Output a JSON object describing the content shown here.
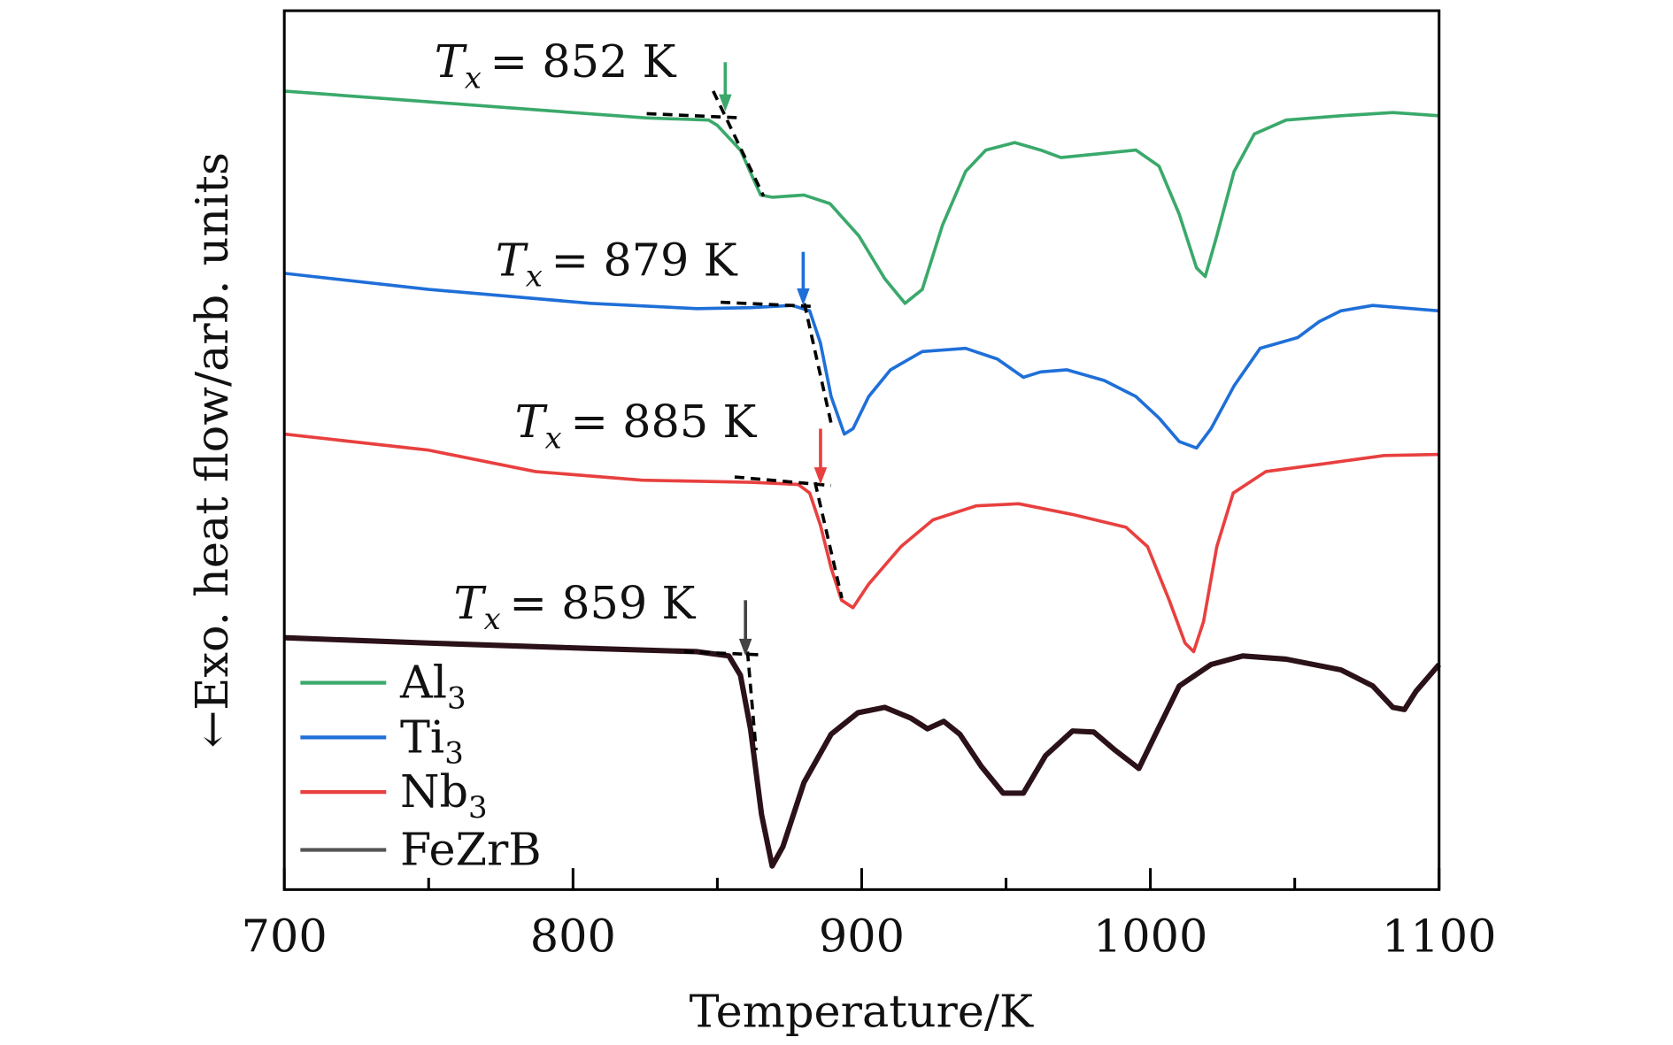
{
  "chart_data": {
    "type": "line",
    "title": "",
    "xlabel": "Temperature/K",
    "ylabel": "←Exo. heat flow/arb. units",
    "xlim": [
      700,
      1100
    ],
    "ylim": [
      0,
      82
    ],
    "xticks": [
      700,
      800,
      900,
      1000,
      1100
    ],
    "xtick_labels": [
      "700",
      "800",
      "900",
      "1000",
      "1100"
    ],
    "minor_xticks": [
      750,
      850,
      950,
      1050
    ],
    "grid": false,
    "legend_position": "bottom-left",
    "series": [
      {
        "name": "Al",
        "sub": "3",
        "color": "#3aa96b",
        "legend_color": "#3aa96b",
        "x": [
          700,
          750,
          825,
          847,
          850,
          858,
          865,
          869,
          880,
          889,
          899,
          908,
          915,
          921,
          928,
          936,
          943,
          953,
          962,
          969,
          984,
          995,
          1003,
          1010,
          1016,
          1019,
          1023,
          1029,
          1036,
          1047,
          1066,
          1084,
          1100
        ],
        "y": [
          74.5,
          73.5,
          72,
          71.8,
          71.3,
          69,
          64.8,
          64.6,
          64.8,
          64,
          61,
          57,
          54.7,
          56,
          62,
          67,
          69,
          69.7,
          69,
          68.3,
          68.7,
          69,
          67.5,
          63,
          58,
          57.2,
          61,
          67,
          70.5,
          71.8,
          72.2,
          72.5,
          72.2
        ]
      },
      {
        "name": "Ti",
        "sub": "3",
        "color": "#1f6fd8",
        "legend_color": "#1f6fd8",
        "x": [
          700,
          750,
          806,
          843,
          861.5,
          876,
          882,
          885.7,
          889.4,
          894,
          897,
          902.4,
          910,
          921,
          936,
          947,
          956,
          962,
          971,
          984,
          995,
          1003,
          1010,
          1016,
          1021,
          1029,
          1038,
          1051,
          1058.5,
          1066,
          1077,
          1100
        ],
        "y": [
          57.5,
          56,
          54.7,
          54.2,
          54.3,
          54.5,
          54,
          51,
          46,
          42.5,
          43,
          46,
          48.5,
          50.2,
          50.5,
          49.5,
          47.8,
          48.3,
          48.5,
          47.5,
          46,
          44,
          41.8,
          41.2,
          43,
          47,
          50.5,
          51.5,
          53,
          54,
          54.5,
          54
        ]
      },
      {
        "name": "Nb",
        "sub": "3",
        "color": "#e8403f",
        "legend_color": "#e8403f",
        "x": [
          700,
          750,
          787,
          824,
          861.5,
          878,
          882,
          885.7,
          889.4,
          893,
          897,
          902.4,
          913.6,
          924.7,
          939.6,
          954.4,
          973,
          991.6,
          999,
          1006.5,
          1012,
          1015,
          1018.4,
          1023,
          1028.7,
          1040,
          1062,
          1081,
          1100
        ],
        "y": [
          42.5,
          41,
          39,
          38.2,
          38,
          37.8,
          37,
          34,
          30,
          27,
          26.3,
          28.5,
          32,
          34.5,
          35.8,
          36,
          35,
          33.8,
          32,
          27,
          23,
          22.2,
          25,
          32,
          37,
          39,
          39.8,
          40.5,
          40.6
        ]
      },
      {
        "name": "FeZrB",
        "sub": "",
        "color": "#2b1118",
        "legend_color": "#555555",
        "x": [
          700,
          750,
          806,
          843,
          854,
          858,
          861.5,
          865.3,
          869,
          872.7,
          880,
          889.4,
          898.7,
          908,
          917,
          922.8,
          928.4,
          934,
          941.4,
          949,
          956,
          963.7,
          973,
          980.4,
          987.8,
          996,
          1002.7,
          1010,
          1021,
          1032,
          1047,
          1066,
          1077,
          1084,
          1088,
          1092,
          1100
        ],
        "y": [
          23.5,
          23,
          22.5,
          22.2,
          21.8,
          20,
          15,
          7,
          2.2,
          4,
          10,
          14.5,
          16.5,
          17,
          16,
          15,
          15.7,
          14.5,
          11.5,
          9,
          9,
          12.5,
          14.8,
          14.7,
          13,
          11.3,
          15,
          19,
          21,
          21.8,
          21.5,
          20.5,
          19,
          17,
          16.8,
          18.5,
          21
        ]
      }
    ],
    "annotations": [
      {
        "series": "Al",
        "var": "T",
        "sub": "x",
        "text": "= 852 K",
        "tx": 852,
        "color": "#3aa96b"
      },
      {
        "series": "Ti",
        "var": "T",
        "sub": "x",
        "text": "= 879 K",
        "tx": 879,
        "color": "#1f6fd8"
      },
      {
        "series": "Nb",
        "var": "T",
        "sub": "x",
        "text": "= 885 K",
        "tx": 885,
        "color": "#e8403f"
      },
      {
        "series": "FeZrB",
        "var": "T",
        "sub": "x",
        "text": "= 859 K",
        "tx": 859,
        "color": "#444444"
      }
    ]
  }
}
